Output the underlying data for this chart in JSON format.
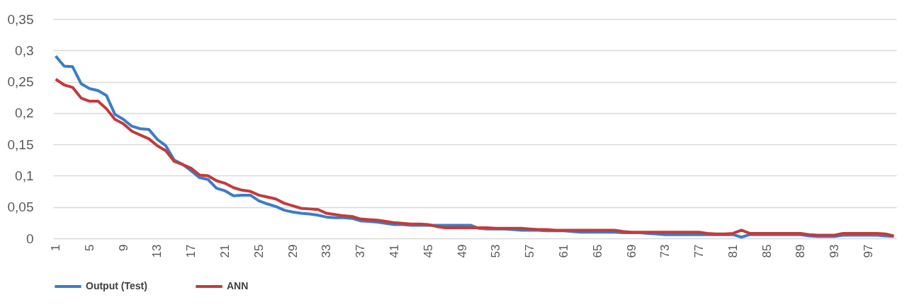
{
  "chart_data": {
    "type": "line",
    "categories": [
      "1",
      null,
      null,
      null,
      "5",
      null,
      null,
      null,
      "9",
      null,
      null,
      null,
      "13",
      null,
      null,
      null,
      "17",
      null,
      null,
      null,
      "21",
      null,
      null,
      null,
      "25",
      null,
      null,
      null,
      "29",
      null,
      null,
      null,
      "33",
      null,
      null,
      null,
      "37",
      null,
      null,
      null,
      "41",
      null,
      null,
      null,
      "45",
      null,
      null,
      null,
      "49",
      null,
      null,
      null,
      "53",
      null,
      null,
      null,
      "57",
      null,
      null,
      null,
      "61",
      null,
      null,
      null,
      "65",
      null,
      null,
      null,
      "69",
      null,
      null,
      null,
      "73",
      null,
      null,
      null,
      "77",
      null,
      null,
      null,
      "81",
      null,
      null,
      null,
      "85",
      null,
      null,
      null,
      "89",
      null,
      null,
      null,
      "93",
      null,
      null,
      null,
      "97",
      null,
      null,
      null
    ],
    "series": [
      {
        "name": "Output (Test)",
        "color": "#3b7dc8",
        "values": [
          0.291,
          0.275,
          0.274,
          0.247,
          0.239,
          0.236,
          0.228,
          0.198,
          0.19,
          0.179,
          0.175,
          0.174,
          0.158,
          0.148,
          0.125,
          0.118,
          0.108,
          0.097,
          0.094,
          0.08,
          0.076,
          0.068,
          0.069,
          0.069,
          0.06,
          0.055,
          0.051,
          0.045,
          0.042,
          0.04,
          0.039,
          0.037,
          0.034,
          0.033,
          0.033,
          0.032,
          0.028,
          0.027,
          0.026,
          0.024,
          0.022,
          0.022,
          0.021,
          0.021,
          0.021,
          0.021,
          0.021,
          0.021,
          0.021,
          0.021,
          0.016,
          0.015,
          0.015,
          0.015,
          0.014,
          0.013,
          0.013,
          0.013,
          0.012,
          0.012,
          0.012,
          0.011,
          0.01,
          0.01,
          0.01,
          0.01,
          0.01,
          0.009,
          0.009,
          0.009,
          0.008,
          0.007,
          0.006,
          0.006,
          0.006,
          0.006,
          0.006,
          0.006,
          0.006,
          0.006,
          0.006,
          0.002,
          0.006,
          0.006,
          0.006,
          0.006,
          0.006,
          0.006,
          0.006,
          0.004,
          0.003,
          0.003,
          0.003,
          0.005,
          0.005,
          0.005,
          0.005,
          0.005,
          0.004,
          0.003
        ]
      },
      {
        "name": "ANN",
        "color": "#c23b3b",
        "values": [
          0.254,
          0.245,
          0.241,
          0.224,
          0.219,
          0.219,
          0.207,
          0.19,
          0.183,
          0.171,
          0.165,
          0.159,
          0.148,
          0.14,
          0.123,
          0.118,
          0.112,
          0.101,
          0.1,
          0.092,
          0.088,
          0.081,
          0.077,
          0.075,
          0.069,
          0.066,
          0.063,
          0.056,
          0.052,
          0.048,
          0.047,
          0.046,
          0.04,
          0.038,
          0.036,
          0.035,
          0.031,
          0.03,
          0.029,
          0.027,
          0.025,
          0.024,
          0.023,
          0.023,
          0.022,
          0.019,
          0.017,
          0.017,
          0.017,
          0.017,
          0.017,
          0.017,
          0.016,
          0.016,
          0.016,
          0.016,
          0.015,
          0.014,
          0.014,
          0.013,
          0.013,
          0.013,
          0.013,
          0.013,
          0.013,
          0.013,
          0.013,
          0.011,
          0.01,
          0.01,
          0.01,
          0.01,
          0.01,
          0.01,
          0.01,
          0.01,
          0.01,
          0.008,
          0.007,
          0.007,
          0.008,
          0.013,
          0.008,
          0.008,
          0.008,
          0.008,
          0.008,
          0.008,
          0.008,
          0.006,
          0.005,
          0.005,
          0.005,
          0.008,
          0.008,
          0.008,
          0.008,
          0.008,
          0.007,
          0.004
        ]
      }
    ],
    "ylim": [
      0,
      0.35
    ],
    "yticks": [
      0,
      {
        "value": 0.05,
        "label": "0,05"
      },
      {
        "value": 0.1,
        "label": "0,1"
      },
      {
        "value": 0.15,
        "label": "0,15"
      },
      {
        "value": 0.2,
        "label": "0,2"
      },
      {
        "value": 0.25,
        "label": "0,25"
      },
      {
        "value": 0.3,
        "label": "0,3"
      },
      {
        "value": 0.35,
        "label": "0,35"
      }
    ],
    "grid": "y",
    "legend": "bottom",
    "marker": "none",
    "line_style": "solid"
  }
}
